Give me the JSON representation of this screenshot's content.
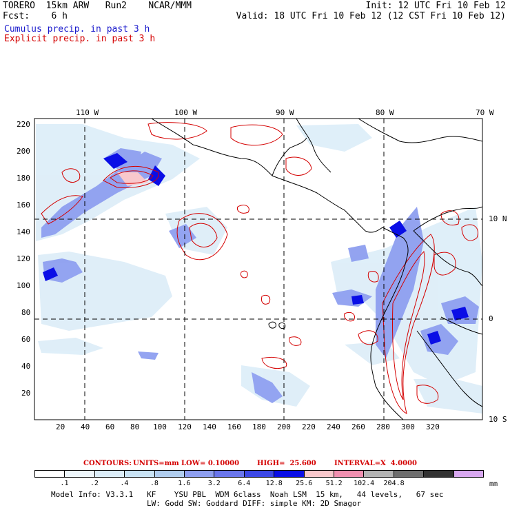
{
  "header": {
    "line1_left": "TORERO  15km ARW   Run2    NCAR/MMM",
    "line1_right": "Init: 12 UTC Fri 10 Feb 12",
    "line2_left": "Fcst:    6 h",
    "line2_right": "Valid: 18 UTC Fri 10 Feb 12 (12 CST Fri 10 Feb 12)",
    "line3": "Cumulus precip. in past 3 h",
    "line4": "Explicit precip. in past 3 h"
  },
  "axes": {
    "lon_labels": [
      "110 W",
      "100 W",
      "90 W",
      "80 W",
      "70 W"
    ],
    "lat_labels": [
      "10 N",
      "0",
      "10 S"
    ],
    "x_ticks": [
      "20",
      "40",
      "60",
      "80",
      "100",
      "120",
      "140",
      "160",
      "180",
      "200",
      "220",
      "240",
      "260",
      "280",
      "300",
      "320"
    ],
    "y_ticks": [
      "220",
      "200",
      "180",
      "160",
      "140",
      "120",
      "100",
      "80",
      "60",
      "40",
      "20"
    ]
  },
  "contours_line": {
    "contours": "CONTOURS:",
    "units": "UNITS=mm",
    "low": "LOW= 0.10000",
    "high": "HIGH=  25.600",
    "interval": "INTERVAL=X  4.0000"
  },
  "colorbar": {
    "colors": [
      "#ffffff",
      "#eef6fb",
      "#dcedf8",
      "#c9e3f4",
      "#b0cdee",
      "#8e9ff0",
      "#6a76ec",
      "#3c48e6",
      "#0a0ee6",
      "#f8c8cc",
      "#f090b0",
      "#b4b4b4",
      "#6e6e6e",
      "#323232",
      "#d8a8f0"
    ],
    "labels": [
      ".1",
      ".2",
      ".4",
      ".8",
      "1.6",
      "3.2",
      "6.4",
      "12.8",
      "25.6",
      "51.2",
      "102.4",
      "204.8"
    ],
    "units": "mm"
  },
  "footer": {
    "line1": "Model Info: V3.3.1   KF    YSU PBL  WDM 6class  Noah LSM  15 km,   44 levels,   67 sec",
    "line2": "LW: Godd SW: Goddard DIFF: simple KM: 2D Smagor"
  }
}
